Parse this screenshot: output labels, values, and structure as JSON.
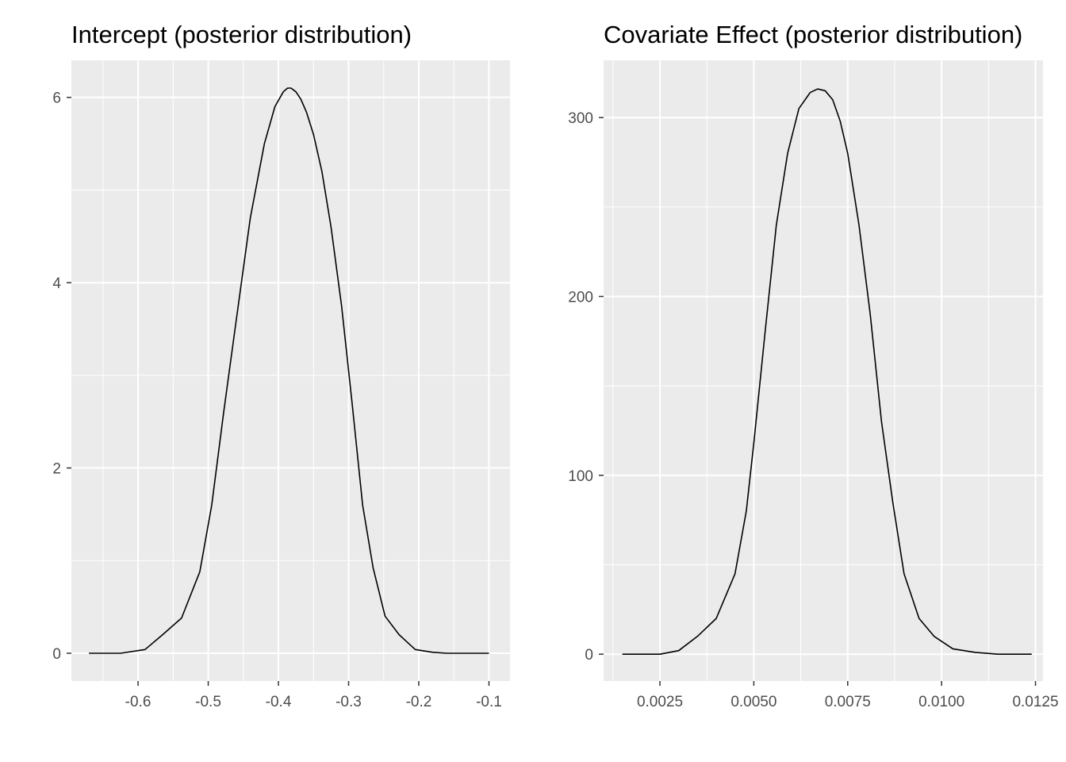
{
  "chart_data": [
    {
      "type": "line",
      "title": "Intercept (posterior distribution)",
      "xlabel": "",
      "ylabel": "",
      "xlim": [
        -0.695,
        -0.07
      ],
      "ylim": [
        -0.3,
        6.4
      ],
      "x_ticks": [
        -0.6,
        -0.5,
        -0.4,
        -0.3,
        -0.2,
        -0.1
      ],
      "x_tick_labels": [
        "-0.6",
        "-0.5",
        "-0.4",
        "-0.3",
        "-0.2",
        "-0.1"
      ],
      "x_minor_ticks": [
        -0.65,
        -0.55,
        -0.45,
        -0.35,
        -0.25,
        -0.15
      ],
      "y_ticks": [
        0,
        2,
        4,
        6
      ],
      "y_tick_labels": [
        "0",
        "2",
        "4",
        "6"
      ],
      "y_minor_ticks": [
        1,
        3,
        5
      ],
      "grid": true,
      "line_color": "#000000",
      "series": [
        {
          "x": [
            -0.67,
            -0.65,
            -0.625,
            -0.59,
            -0.565,
            -0.538,
            -0.512,
            -0.495,
            -0.478,
            -0.46,
            -0.44,
            -0.42,
            -0.405,
            -0.393,
            -0.387,
            -0.382,
            -0.375,
            -0.368,
            -0.36,
            -0.35,
            -0.338,
            -0.325,
            -0.31,
            -0.295,
            -0.28,
            -0.265,
            -0.248,
            -0.228,
            -0.205,
            -0.18,
            -0.16,
            -0.14,
            -0.12,
            -0.1
          ],
          "values": [
            0.0,
            0.0,
            0.0,
            0.04,
            0.2,
            0.38,
            0.88,
            1.6,
            2.6,
            3.6,
            4.7,
            5.5,
            5.9,
            6.06,
            6.1,
            6.1,
            6.06,
            5.98,
            5.84,
            5.6,
            5.2,
            4.6,
            3.75,
            2.7,
            1.6,
            0.92,
            0.4,
            0.2,
            0.04,
            0.01,
            0.0,
            0.0,
            0.0,
            0.0
          ]
        }
      ]
    },
    {
      "type": "line",
      "title": "Covariate Effect (posterior distribution)",
      "xlabel": "",
      "ylabel": "",
      "xlim": [
        0.001,
        0.0127
      ],
      "ylim": [
        -15,
        332
      ],
      "x_ticks": [
        0.0025,
        0.005,
        0.0075,
        0.01,
        0.0125
      ],
      "x_tick_labels": [
        "0.0025",
        "0.0050",
        "0.0075",
        "0.0100",
        "0.0125"
      ],
      "x_minor_ticks": [
        0.00125,
        0.00375,
        0.00625,
        0.00875,
        0.01125
      ],
      "y_ticks": [
        0,
        100,
        200,
        300
      ],
      "y_tick_labels": [
        "0",
        "100",
        "200",
        "300"
      ],
      "y_minor_ticks": [
        50,
        150,
        250
      ],
      "grid": true,
      "line_color": "#000000",
      "series": [
        {
          "x": [
            0.0015,
            0.002,
            0.0025,
            0.003,
            0.0035,
            0.004,
            0.0045,
            0.0048,
            0.005,
            0.0053,
            0.0056,
            0.0059,
            0.0062,
            0.0065,
            0.0067,
            0.0069,
            0.0071,
            0.0073,
            0.0075,
            0.0078,
            0.0081,
            0.0084,
            0.0087,
            0.009,
            0.0094,
            0.0098,
            0.0103,
            0.0109,
            0.0115,
            0.012,
            0.0124
          ],
          "values": [
            0,
            0,
            0,
            2,
            10,
            20,
            45,
            80,
            118,
            180,
            240,
            280,
            305,
            314,
            316,
            315,
            310,
            298,
            280,
            240,
            190,
            130,
            85,
            45,
            20,
            10,
            3,
            1,
            0,
            0,
            0
          ]
        }
      ]
    }
  ]
}
